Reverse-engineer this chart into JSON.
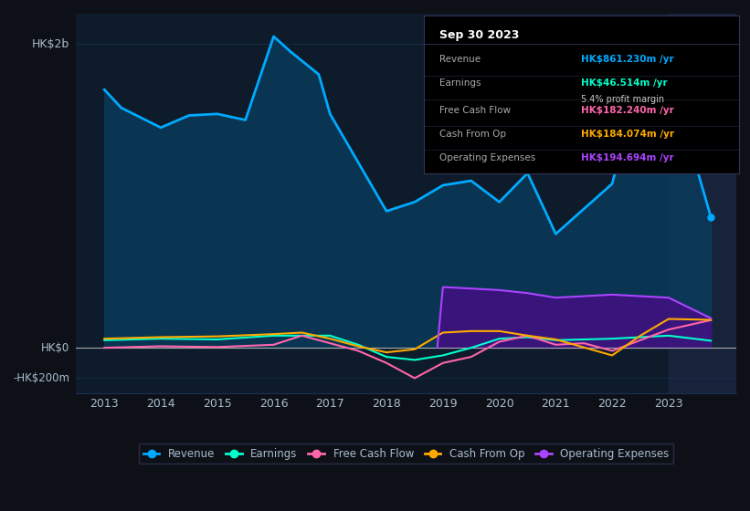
{
  "background_color": "#0d1117",
  "plot_bg_color": "#0d1b2a",
  "title": "Sep 30 2023",
  "ylabel_top": "HK$2b",
  "ylabel_zero": "HK$0",
  "ylabel_neg": "-HK$200m",
  "ylim": [
    -300,
    2200
  ],
  "xlim": [
    2012.5,
    2024.2
  ],
  "revenue_color": "#00aaff",
  "earnings_color": "#00ffcc",
  "fcf_color": "#ff66aa",
  "cashfromop_color": "#ffaa00",
  "opex_color": "#aa44ff",
  "revenue_fill_color": "#0a3a5a",
  "opex_fill_color": "#4a0a8a",
  "grid_color": "#1e3050",
  "text_color": "#aabbcc",
  "info_revenue": "HK$861.230m",
  "info_earnings": "HK$46.514m",
  "info_margin": "5.4%",
  "info_fcf": "HK$182.240m",
  "info_cashfromop": "HK$184.074m",
  "info_opex": "HK$194.694m",
  "revenue_info_color": "#00aaff",
  "earnings_info_color": "#00ffcc",
  "fcf_info_color": "#ff66aa",
  "cashfromop_info_color": "#ffaa00",
  "opex_info_color": "#aa44ff",
  "legend_labels": [
    "Revenue",
    "Earnings",
    "Free Cash Flow",
    "Cash From Op",
    "Operating Expenses"
  ],
  "legend_colors": [
    "#00aaff",
    "#00ffcc",
    "#ff66aa",
    "#ffaa00",
    "#aa44ff"
  ],
  "rev_x": [
    2013,
    2013.3,
    2014,
    2014.5,
    2015,
    2015.5,
    2016,
    2016.3,
    2016.8,
    2017,
    2018,
    2018.5,
    2019,
    2019.5,
    2020,
    2020.5,
    2021,
    2022,
    2022.5,
    2023,
    2023.75
  ],
  "rev_y": [
    1700,
    1580,
    1450,
    1530,
    1540,
    1500,
    2050,
    1950,
    1800,
    1540,
    900,
    960,
    1070,
    1100,
    960,
    1150,
    750,
    1080,
    1800,
    1820,
    861
  ],
  "earn_x": [
    2013,
    2014,
    2015,
    2016,
    2017,
    2017.5,
    2018,
    2018.5,
    2019,
    2019.5,
    2020,
    2020.5,
    2021,
    2022,
    2022.5,
    2023,
    2023.75
  ],
  "earn_y": [
    50,
    60,
    55,
    80,
    80,
    20,
    -60,
    -80,
    -50,
    0,
    60,
    70,
    50,
    60,
    70,
    80,
    46.514
  ],
  "fcf_x": [
    2013,
    2014,
    2015,
    2016,
    2016.5,
    2017,
    2017.5,
    2018,
    2018.5,
    2019,
    2019.5,
    2020,
    2020.5,
    2021,
    2021.5,
    2022,
    2022.5,
    2023,
    2023.75
  ],
  "fcf_y": [
    0,
    10,
    5,
    20,
    80,
    30,
    -20,
    -100,
    -200,
    -100,
    -60,
    40,
    80,
    20,
    30,
    -20,
    50,
    120,
    182.24
  ],
  "cfop_x": [
    2013,
    2014,
    2015,
    2016,
    2016.5,
    2017,
    2017.5,
    2018,
    2018.5,
    2019,
    2019.5,
    2020,
    2020.5,
    2021,
    2022,
    2022.5,
    2023,
    2023.75
  ],
  "cfop_y": [
    60,
    70,
    75,
    90,
    100,
    60,
    10,
    -30,
    -10,
    100,
    110,
    110,
    80,
    55,
    -50,
    80,
    190,
    184.074
  ],
  "opex_x": [
    2018.9,
    2019,
    2019.5,
    2020,
    2020.5,
    2021,
    2021.5,
    2022,
    2022.5,
    2023,
    2023.75
  ],
  "opex_y": [
    0,
    400,
    390,
    380,
    360,
    330,
    340,
    350,
    340,
    330,
    194.694
  ]
}
